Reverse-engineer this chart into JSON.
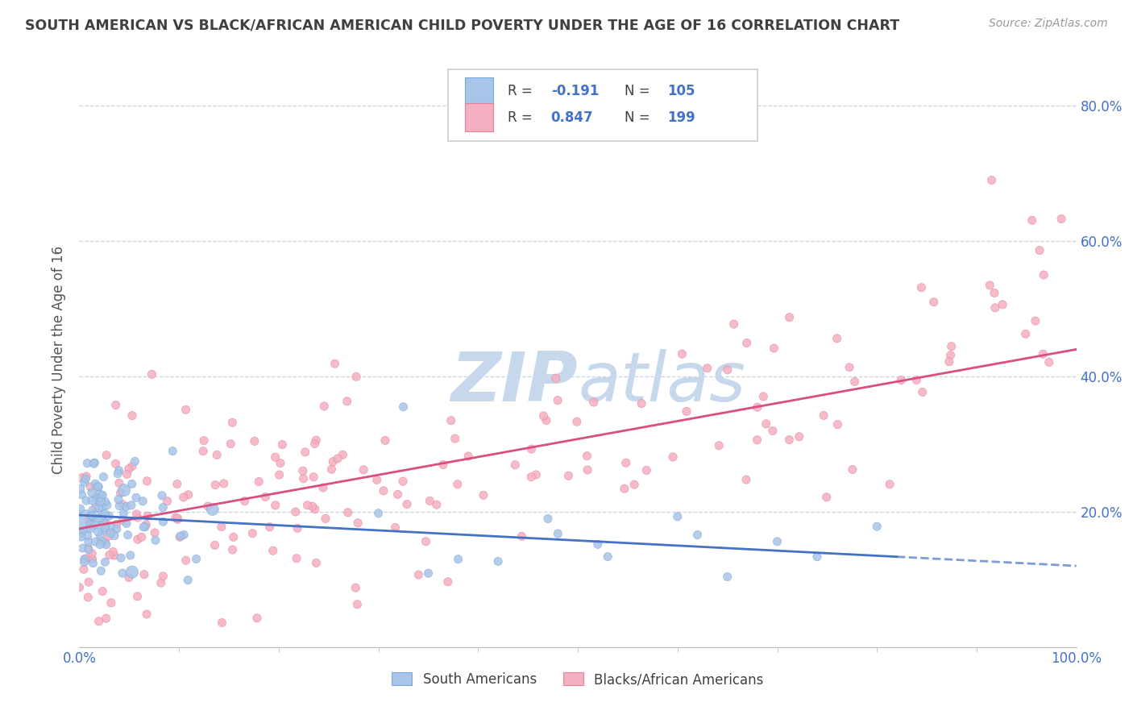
{
  "title": "SOUTH AMERICAN VS BLACK/AFRICAN AMERICAN CHILD POVERTY UNDER THE AGE OF 16 CORRELATION CHART",
  "source": "Source: ZipAtlas.com",
  "ylabel": "Child Poverty Under the Age of 16",
  "xlim": [
    0.0,
    1.0
  ],
  "ylim": [
    0.0,
    0.85
  ],
  "sa_color": "#a8c4e8",
  "sa_edge_color": "#7aa8d8",
  "baa_color": "#f4b0c0",
  "baa_edge_color": "#e88098",
  "sa_line_color": "#4472c4",
  "baa_line_color": "#d94f7e",
  "watermark_color": "#c8d8ec",
  "background_color": "#ffffff",
  "grid_color": "#c0d0e0",
  "title_color": "#404040",
  "legend_text_color": "#4472c4",
  "axis_label_color": "#4472c4",
  "sa_R": -0.191,
  "sa_N": 105,
  "baa_R": 0.847,
  "baa_N": 199,
  "sa_line_intercept": 0.195,
  "sa_line_slope": -0.075,
  "baa_line_intercept": 0.175,
  "baa_line_slope": 0.265
}
